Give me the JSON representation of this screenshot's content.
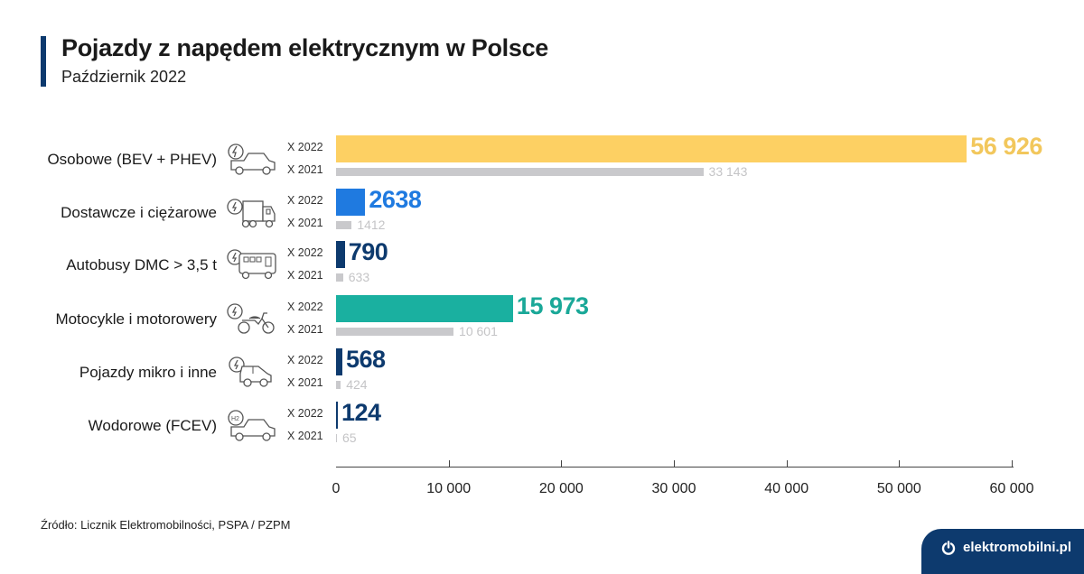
{
  "header": {
    "title": "Pojazdy z napędem elektrycznym w Polsce",
    "subtitle": "Październik 2022",
    "accent_color": "#0d3a6e"
  },
  "footer": {
    "source": "Źródło: Licznik Elektromobilności, PSPA / PZPM",
    "brand": "elektromobilni.pl",
    "brand_color": "#0d3a6e"
  },
  "rows": [
    {
      "label": "Osobowe (BEV + PHEV)",
      "icon": "electric-car-icon",
      "year_a": "X 2022",
      "year_b": "X 2021",
      "v2022": 56926,
      "v2022_text": "56 926",
      "v2021": 33143,
      "v2021_text": "33 143",
      "color": "#fdd063"
    },
    {
      "label": "Dostawcze i ciężarowe",
      "icon": "electric-truck-icon",
      "year_a": "X 2022",
      "year_b": "X 2021",
      "v2022": 2638,
      "v2022_text": "2638",
      "v2021": 1412,
      "v2021_text": "1412",
      "color": "#1f7ae0"
    },
    {
      "label": "Autobusy DMC > 3,5 t",
      "icon": "electric-bus-icon",
      "year_a": "X 2022",
      "year_b": "X 2021",
      "v2022": 790,
      "v2022_text": "790",
      "v2021": 633,
      "v2021_text": "633",
      "color": "#0d3a6e"
    },
    {
      "label": "Motocykle i motorowery",
      "icon": "electric-motorcycle-icon",
      "year_a": "X 2022",
      "year_b": "X 2021",
      "v2022": 15973,
      "v2022_text": "15 973",
      "v2021": 10601,
      "v2021_text": "10 601",
      "color": "#1ab0a0"
    },
    {
      "label": "Pojazdy mikro i inne",
      "icon": "electric-microcar-icon",
      "year_a": "X 2022",
      "year_b": "X 2021",
      "v2022": 568,
      "v2022_text": "568",
      "v2021": 424,
      "v2021_text": "424",
      "color": "#0d3a6e"
    },
    {
      "label": "Wodorowe (FCEV)",
      "icon": "hydrogen-car-icon",
      "year_a": "X 2022",
      "year_b": "X 2021",
      "v2022": 124,
      "v2022_text": "124",
      "v2021": 65,
      "v2021_text": "65",
      "color": "#0d3a6e"
    }
  ],
  "axis": {
    "ticks": [
      "0",
      "10 000",
      "20 000",
      "30 000",
      "40 000",
      "50 000",
      "60 000"
    ]
  },
  "chart_data": {
    "type": "bar",
    "orientation": "horizontal",
    "title": "Pojazdy z napędem elektrycznym w Polsce",
    "subtitle": "Październik 2022",
    "categories": [
      "Osobowe (BEV + PHEV)",
      "Dostawcze i ciężarowe",
      "Autobusy DMC > 3,5 t",
      "Motocykle i motorowery",
      "Pojazdy mikro i inne",
      "Wodorowe (FCEV)"
    ],
    "series": [
      {
        "name": "X 2022",
        "values": [
          56926,
          2638,
          790,
          15973,
          568,
          124
        ]
      },
      {
        "name": "X 2021",
        "values": [
          33143,
          1412,
          633,
          10601,
          424,
          65
        ]
      }
    ],
    "xlabel": "",
    "ylabel": "",
    "xlim": [
      0,
      60000
    ],
    "xticks": [
      0,
      10000,
      20000,
      30000,
      40000,
      50000,
      60000
    ],
    "grid": false,
    "legend": "inline per row (X 2022 / X 2021)",
    "source": "Źródło: Licznik Elektromobilności, PSPA / PZPM"
  }
}
